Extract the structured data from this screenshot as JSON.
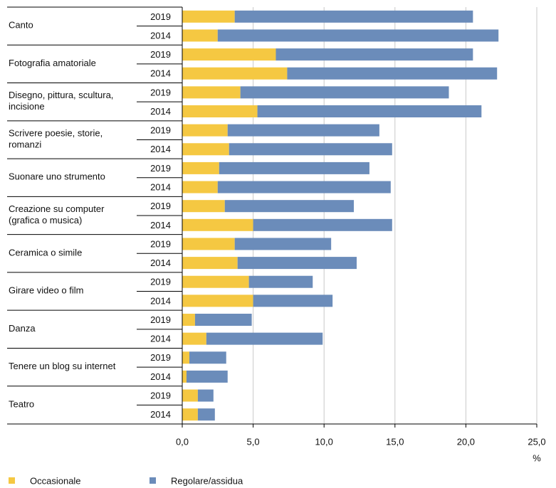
{
  "chart_data": {
    "type": "stacked_barh",
    "groups": [
      [
        "Canto"
      ],
      [
        "Fotografia amatoriale"
      ],
      [
        "Disegno, pittura, scultura,",
        "incisione"
      ],
      [
        "Scrivere poesie, storie,",
        "romanzi"
      ],
      [
        "Suonare uno strumento"
      ],
      [
        "Creazione su computer",
        "(grafica o musica)"
      ],
      [
        "Ceramica o simile"
      ],
      [
        "Girare video o film"
      ],
      [
        "Danza"
      ],
      [
        "Tenere un blog su internet"
      ],
      [
        "Teatro"
      ]
    ],
    "years": [
      "2019",
      "2014"
    ],
    "series": [
      {
        "name": "Occasionale",
        "color": "#f5c842",
        "values": [
          3.7,
          2.5,
          6.6,
          7.4,
          4.1,
          5.3,
          3.2,
          3.3,
          2.6,
          2.5,
          3.0,
          5.0,
          3.7,
          3.9,
          4.7,
          5.0,
          0.9,
          1.7,
          0.5,
          0.3,
          1.1,
          1.1
        ]
      },
      {
        "name": "Regolare/assidua",
        "color": "#6b8cba",
        "values": [
          16.8,
          19.8,
          13.9,
          14.8,
          14.7,
          15.8,
          10.7,
          11.5,
          10.6,
          12.2,
          9.1,
          9.8,
          6.8,
          8.4,
          4.5,
          5.6,
          4.0,
          8.2,
          2.6,
          2.9,
          1.1,
          1.2
        ]
      }
    ],
    "x_label": "%",
    "xlim": [
      0,
      25
    ],
    "xticks": [
      {
        "value": 0,
        "label": "0,0"
      },
      {
        "value": 5,
        "label": "5,0"
      },
      {
        "value": 10,
        "label": "10,0"
      },
      {
        "value": 15,
        "label": "15,0"
      },
      {
        "value": 20,
        "label": "20,0"
      },
      {
        "value": 25,
        "label": "25,0"
      }
    ],
    "grid": true
  }
}
